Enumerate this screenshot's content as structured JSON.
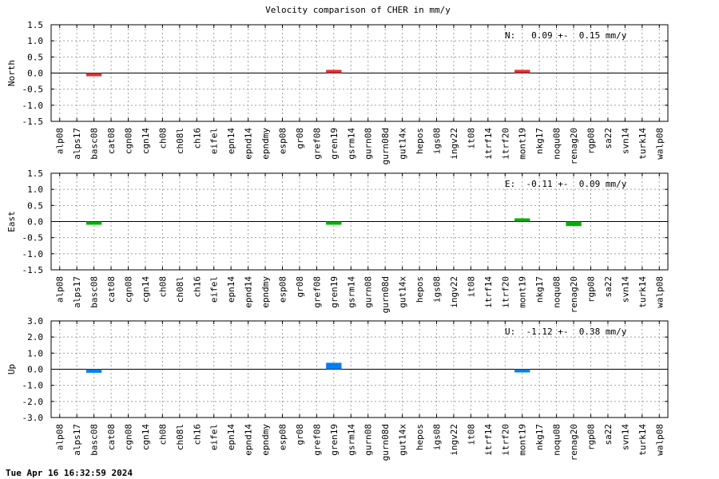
{
  "chart_data": {
    "title": "Velocity comparison of CHER in mm/y",
    "timestamp": "Tue Apr 16 16:32:59 2024",
    "categories": [
      "alp08",
      "alps17",
      "basc08",
      "cat08",
      "cgn08",
      "cgn14",
      "ch08",
      "ch08l",
      "ch16",
      "eifel",
      "epn14",
      "epnd14",
      "epndmy",
      "esp08",
      "gr08",
      "gref08",
      "gren19",
      "gsrm14",
      "gurn08",
      "gurn08d",
      "gut14x",
      "hepos",
      "igs08",
      "ingv22",
      "it08",
      "itrf14",
      "itrf20",
      "mont19",
      "nkg17",
      "noqu08",
      "renag20",
      "rgp08",
      "sa22",
      "svn14",
      "turk14",
      "walp08"
    ],
    "panels": [
      {
        "type": "bar",
        "ylabel": "North",
        "color": "#e03030",
        "ylim": [
          -1.5,
          1.5
        ],
        "yticks": [
          "1.5",
          "1.0",
          "0.5",
          "0.0",
          "-0.5",
          "-1.0",
          "-1.5"
        ],
        "stat": "N:   0.09 +-  0.15 mm/y",
        "values": {
          "basc08": -0.09,
          "gren19": 0.05,
          "mont19": 0.04
        }
      },
      {
        "type": "bar",
        "ylabel": "East",
        "color": "#00b000",
        "ylim": [
          -1.5,
          1.5
        ],
        "yticks": [
          "1.5",
          "1.0",
          "0.5",
          "0.0",
          "-0.5",
          "-1.0",
          "-1.5"
        ],
        "stat": "E:  -0.11 +-  0.09 mm/y",
        "values": {
          "basc08": -0.03,
          "gren19": -0.07,
          "mont19": 0.07,
          "renag20": -0.14
        }
      },
      {
        "type": "bar",
        "ylabel": "Up",
        "color": "#0080f0",
        "ylim": [
          -3.0,
          3.0
        ],
        "yticks": [
          "3.0",
          "2.0",
          "1.0",
          "0.0",
          "-1.0",
          "-2.0",
          "-3.0"
        ],
        "stat": "U:  -1.12 +-  0.38 mm/y",
        "values": {
          "basc08": -0.22,
          "gren19": 0.4,
          "mont19": -0.15
        }
      }
    ],
    "grid": true
  }
}
